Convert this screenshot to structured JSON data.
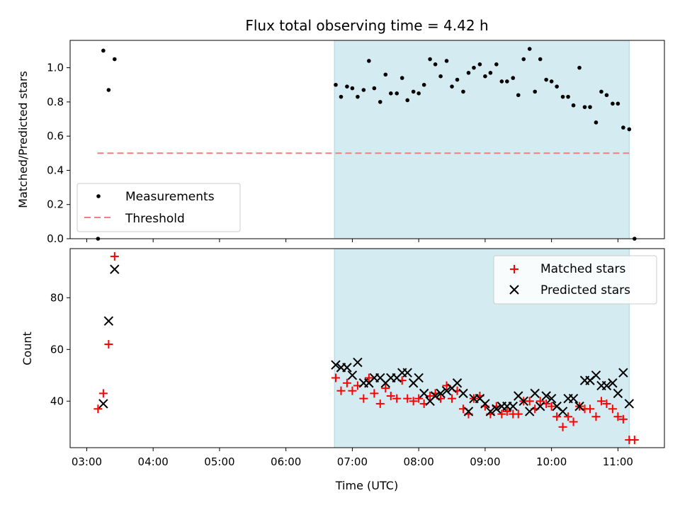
{
  "chart_data": [
    {
      "type": "scatter",
      "title": "Flux total observing time = 4.42 h",
      "ylabel": "Matched/Predicted stars",
      "xlim_hours": [
        2.75,
        11.7
      ],
      "ylim": [
        0,
        1.16
      ],
      "yticks": [
        {
          "value": 0.0,
          "label": "0.0"
        },
        {
          "value": 0.2,
          "label": "0.2"
        },
        {
          "value": 0.4,
          "label": "0.4"
        },
        {
          "value": 0.6,
          "label": "0.6"
        },
        {
          "value": 0.8,
          "label": "0.8"
        },
        {
          "value": 1.0,
          "label": "1.0"
        }
      ],
      "shaded_span_hours": [
        6.73,
        11.17
      ],
      "shaded_color": "#d4ebf1",
      "legend": {
        "position": "lower-left",
        "entries": [
          {
            "label": "Measurements",
            "marker": "dot",
            "color": "#000000"
          },
          {
            "label": "Threshold",
            "marker": "dashed-line",
            "color": "#f08080"
          }
        ]
      },
      "threshold": {
        "value": 0.5,
        "x_range_hours": [
          3.16,
          11.17
        ],
        "color": "#f08080"
      },
      "series": [
        {
          "name": "Measurements",
          "color": "#000000",
          "points": [
            [
              3.17,
              0.0
            ],
            [
              3.25,
              1.1
            ],
            [
              3.33,
              0.87
            ],
            [
              3.42,
              1.05
            ],
            [
              6.75,
              0.9
            ],
            [
              6.83,
              0.83
            ],
            [
              6.92,
              0.89
            ],
            [
              7.0,
              0.88
            ],
            [
              7.08,
              0.83
            ],
            [
              7.17,
              0.87
            ],
            [
              7.25,
              1.04
            ],
            [
              7.33,
              0.88
            ],
            [
              7.42,
              0.8
            ],
            [
              7.5,
              0.96
            ],
            [
              7.58,
              0.85
            ],
            [
              7.67,
              0.85
            ],
            [
              7.75,
              0.94
            ],
            [
              7.83,
              0.81
            ],
            [
              7.92,
              0.86
            ],
            [
              8.0,
              0.85
            ],
            [
              8.08,
              0.9
            ],
            [
              8.17,
              1.05
            ],
            [
              8.25,
              1.02
            ],
            [
              8.33,
              0.95
            ],
            [
              8.42,
              1.04
            ],
            [
              8.5,
              0.89
            ],
            [
              8.58,
              0.93
            ],
            [
              8.67,
              0.86
            ],
            [
              8.75,
              0.97
            ],
            [
              8.83,
              1.0
            ],
            [
              8.92,
              1.02
            ],
            [
              9.0,
              0.95
            ],
            [
              9.08,
              0.97
            ],
            [
              9.17,
              1.02
            ],
            [
              9.25,
              0.92
            ],
            [
              9.33,
              0.92
            ],
            [
              9.42,
              0.94
            ],
            [
              9.5,
              0.84
            ],
            [
              9.58,
              1.05
            ],
            [
              9.67,
              1.11
            ],
            [
              9.75,
              0.86
            ],
            [
              9.83,
              1.05
            ],
            [
              9.92,
              0.93
            ],
            [
              10.0,
              0.92
            ],
            [
              10.08,
              0.89
            ],
            [
              10.17,
              0.83
            ],
            [
              10.25,
              0.83
            ],
            [
              10.33,
              0.78
            ],
            [
              10.42,
              1.0
            ],
            [
              10.5,
              0.77
            ],
            [
              10.58,
              0.77
            ],
            [
              10.67,
              0.68
            ],
            [
              10.75,
              0.86
            ],
            [
              10.83,
              0.84
            ],
            [
              10.92,
              0.79
            ],
            [
              11.0,
              0.79
            ],
            [
              11.08,
              0.65
            ],
            [
              11.17,
              0.64
            ],
            [
              11.25,
              0.0
            ]
          ]
        }
      ]
    },
    {
      "type": "scatter",
      "xlabel": "Time (UTC)",
      "ylabel": "Count",
      "xlim_hours": [
        2.75,
        11.7
      ],
      "ylim": [
        22,
        99
      ],
      "xticks": [
        {
          "value": 3,
          "label": "03:00"
        },
        {
          "value": 4,
          "label": "04:00"
        },
        {
          "value": 5,
          "label": "05:00"
        },
        {
          "value": 6,
          "label": "06:00"
        },
        {
          "value": 7,
          "label": "07:00"
        },
        {
          "value": 8,
          "label": "08:00"
        },
        {
          "value": 9,
          "label": "09:00"
        },
        {
          "value": 10,
          "label": "10:00"
        },
        {
          "value": 11,
          "label": "11:00"
        }
      ],
      "yticks": [
        {
          "value": 40,
          "label": "40"
        },
        {
          "value": 60,
          "label": "60"
        },
        {
          "value": 80,
          "label": "80"
        }
      ],
      "shaded_span_hours": [
        6.73,
        11.17
      ],
      "shaded_color": "#d4ebf1",
      "legend": {
        "position": "top-right",
        "entries": [
          {
            "label": "Matched stars",
            "marker": "plus",
            "color": "#ff0000"
          },
          {
            "label": "Predicted stars",
            "marker": "x",
            "color": "#000000"
          }
        ]
      },
      "series": [
        {
          "name": "Matched stars",
          "marker": "plus",
          "color": "#ff0000",
          "points": [
            [
              3.17,
              37
            ],
            [
              3.25,
              43
            ],
            [
              3.33,
              62
            ],
            [
              3.42,
              96
            ],
            [
              6.75,
              49
            ],
            [
              6.83,
              44
            ],
            [
              6.92,
              47
            ],
            [
              7.0,
              44
            ],
            [
              7.08,
              46
            ],
            [
              7.17,
              41
            ],
            [
              7.25,
              49
            ],
            [
              7.33,
              43
            ],
            [
              7.42,
              39
            ],
            [
              7.5,
              45
            ],
            [
              7.58,
              42
            ],
            [
              7.67,
              41
            ],
            [
              7.75,
              48
            ],
            [
              7.83,
              41
            ],
            [
              7.92,
              40
            ],
            [
              8.0,
              41
            ],
            [
              8.08,
              39
            ],
            [
              8.17,
              42
            ],
            [
              8.25,
              43
            ],
            [
              8.33,
              41
            ],
            [
              8.42,
              46
            ],
            [
              8.5,
              41
            ],
            [
              8.58,
              44
            ],
            [
              8.67,
              37
            ],
            [
              8.75,
              35
            ],
            [
              8.83,
              41
            ],
            [
              8.92,
              42
            ],
            [
              9.0,
              38
            ],
            [
              9.08,
              35
            ],
            [
              9.17,
              38
            ],
            [
              9.25,
              35
            ],
            [
              9.33,
              36
            ],
            [
              9.42,
              35
            ],
            [
              9.5,
              35
            ],
            [
              9.58,
              40
            ],
            [
              9.67,
              40
            ],
            [
              9.75,
              37
            ],
            [
              9.83,
              40
            ],
            [
              9.92,
              39
            ],
            [
              10.0,
              38
            ],
            [
              10.08,
              34
            ],
            [
              10.17,
              30
            ],
            [
              10.25,
              34
            ],
            [
              10.33,
              32
            ],
            [
              10.42,
              38
            ],
            [
              10.5,
              37
            ],
            [
              10.58,
              37
            ],
            [
              10.67,
              34
            ],
            [
              10.75,
              40
            ],
            [
              10.83,
              39
            ],
            [
              10.92,
              37
            ],
            [
              11.0,
              34
            ],
            [
              11.08,
              33
            ],
            [
              11.17,
              25
            ],
            [
              11.25,
              25
            ]
          ]
        },
        {
          "name": "Predicted stars",
          "marker": "x",
          "color": "#000000",
          "points": [
            [
              3.25,
              39
            ],
            [
              3.33,
              71
            ],
            [
              3.42,
              91
            ],
            [
              6.75,
              54
            ],
            [
              6.83,
              53
            ],
            [
              6.92,
              53
            ],
            [
              7.0,
              50
            ],
            [
              7.08,
              55
            ],
            [
              7.17,
              47
            ],
            [
              7.25,
              47
            ],
            [
              7.33,
              49
            ],
            [
              7.42,
              49
            ],
            [
              7.5,
              47
            ],
            [
              7.58,
              49
            ],
            [
              7.67,
              49
            ],
            [
              7.75,
              51
            ],
            [
              7.83,
              51
            ],
            [
              7.92,
              47
            ],
            [
              8.0,
              49
            ],
            [
              8.08,
              43
            ],
            [
              8.17,
              40
            ],
            [
              8.25,
              42
            ],
            [
              8.33,
              43
            ],
            [
              8.42,
              44
            ],
            [
              8.5,
              45
            ],
            [
              8.58,
              47
            ],
            [
              8.67,
              43
            ],
            [
              8.75,
              36
            ],
            [
              8.83,
              41
            ],
            [
              8.92,
              41
            ],
            [
              9.0,
              39
            ],
            [
              9.08,
              36
            ],
            [
              9.17,
              37
            ],
            [
              9.25,
              38
            ],
            [
              9.33,
              38
            ],
            [
              9.42,
              38
            ],
            [
              9.5,
              42
            ],
            [
              9.58,
              40
            ],
            [
              9.67,
              36
            ],
            [
              9.75,
              43
            ],
            [
              9.83,
              38
            ],
            [
              9.92,
              42
            ],
            [
              10.0,
              41
            ],
            [
              10.08,
              38
            ],
            [
              10.17,
              36
            ],
            [
              10.25,
              41
            ],
            [
              10.33,
              41
            ],
            [
              10.42,
              38
            ],
            [
              10.5,
              48
            ],
            [
              10.58,
              48
            ],
            [
              10.67,
              50
            ],
            [
              10.75,
              46
            ],
            [
              10.83,
              46
            ],
            [
              10.92,
              47
            ],
            [
              11.0,
              43
            ],
            [
              11.08,
              51
            ],
            [
              11.17,
              39
            ]
          ]
        }
      ]
    }
  ]
}
